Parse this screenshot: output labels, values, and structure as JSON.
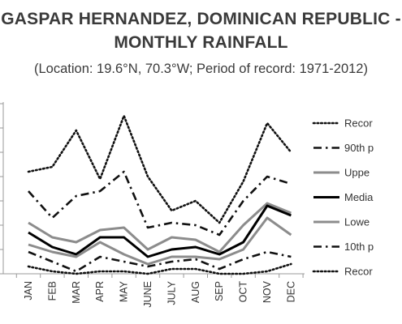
{
  "title_line1": "GASPAR HERNANDEZ, DOMINICAN REPUBLIC -",
  "title_line2": "MONTHLY RAINFALL",
  "subtitle": "(Location: 19.6°N, 70.3°W; Period of record: 1971-2012)",
  "chart_data": {
    "type": "line",
    "title": "GASPAR HERNANDEZ, DOMINICAN REPUBLIC - MONTHLY RAINFALL",
    "subtitle": "(Location: 19.6°N, 70.3°W; Period of record: 1971-2012)",
    "categories": [
      "JAN",
      "FEB",
      "MAR",
      "APR",
      "MAY",
      "JUNE",
      "JULY",
      "AUG",
      "SEP",
      "OCT",
      "NOV",
      "DEC"
    ],
    "ylim": [
      0,
      7
    ],
    "grid": false,
    "legend_position": "right",
    "series": [
      {
        "name": "Recor",
        "style": "dotted",
        "color": "#111111",
        "values": [
          4.2,
          4.4,
          5.9,
          3.9,
          6.5,
          4.0,
          2.6,
          3.0,
          2.1,
          3.8,
          6.2,
          5.0
        ]
      },
      {
        "name": "90th p",
        "style": "dashdot",
        "color": "#111111",
        "values": [
          3.4,
          2.3,
          3.2,
          3.4,
          4.2,
          1.9,
          2.1,
          2.0,
          1.6,
          3.0,
          4.0,
          3.7
        ]
      },
      {
        "name": "Uppe",
        "style": "solid",
        "color": "#8c8c8c",
        "values": [
          2.1,
          1.5,
          1.3,
          1.8,
          1.9,
          1.0,
          1.5,
          1.4,
          0.9,
          2.0,
          2.9,
          2.5
        ]
      },
      {
        "name": "Media",
        "style": "solid",
        "color": "#000000",
        "values": [
          1.7,
          1.1,
          0.8,
          1.5,
          1.5,
          0.7,
          1.0,
          1.1,
          0.8,
          1.3,
          2.8,
          2.4
        ]
      },
      {
        "name": "Lowe",
        "style": "solid",
        "color": "#8c8c8c",
        "values": [
          1.2,
          0.9,
          0.7,
          1.3,
          0.8,
          0.4,
          0.7,
          0.7,
          0.6,
          1.0,
          2.3,
          1.6
        ]
      },
      {
        "name": "10th p",
        "style": "dashdot",
        "color": "#111111",
        "values": [
          0.9,
          0.5,
          0.1,
          0.7,
          0.5,
          0.3,
          0.5,
          0.6,
          0.2,
          0.6,
          0.9,
          0.7
        ]
      },
      {
        "name": "Recor",
        "style": "dotted",
        "color": "#111111",
        "values": [
          0.3,
          0.1,
          0.0,
          0.1,
          0.1,
          0.0,
          0.2,
          0.2,
          0.0,
          0.0,
          0.1,
          0.4
        ]
      }
    ]
  }
}
